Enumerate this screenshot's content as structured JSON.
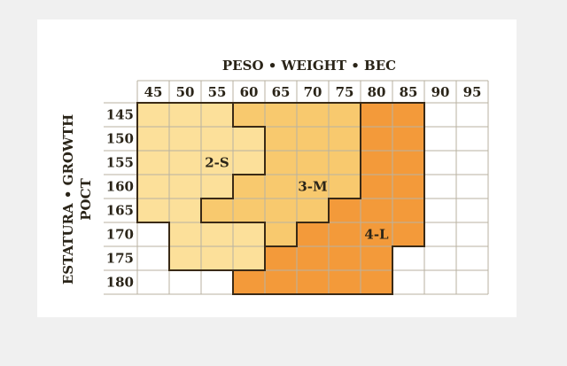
{
  "chart_data": {
    "type": "table",
    "title": "PESO • WEIGHT • BEC",
    "xlabel": "PESO • WEIGHT • BEC",
    "ylabel_line1": "ESTATURA • GROWTH",
    "ylabel_line2": "POCT",
    "x_ticks": [
      "45",
      "50",
      "55",
      "60",
      "65",
      "70",
      "75",
      "80",
      "85",
      "90",
      "95"
    ],
    "y_ticks": [
      "145",
      "150",
      "155",
      "160",
      "165",
      "170",
      "175",
      "180"
    ],
    "regions": [
      {
        "label": "2-S",
        "color": "#fce09a",
        "cells": {
          "145": [
            "45",
            "50",
            "55"
          ],
          "150": [
            "45",
            "50",
            "55",
            "60"
          ],
          "155": [
            "45",
            "50",
            "55",
            "60"
          ],
          "160": [
            "45",
            "50",
            "55"
          ],
          "165": [
            "45",
            "50"
          ],
          "170": [
            "50",
            "55",
            "60"
          ],
          "175": [
            "50",
            "55",
            "60"
          ]
        }
      },
      {
        "label": "3-M",
        "color": "#f8c96e",
        "cells": {
          "145": [
            "60",
            "65",
            "70",
            "75"
          ],
          "150": [
            "65",
            "70",
            "75"
          ],
          "155": [
            "65",
            "70",
            "75"
          ],
          "160": [
            "60",
            "65",
            "70",
            "75"
          ],
          "165": [
            "55",
            "60",
            "65",
            "70"
          ],
          "170": [
            "65"
          ]
        }
      },
      {
        "label": "4-L",
        "color": "#f39a3a",
        "cells": {
          "145": [
            "80",
            "85"
          ],
          "150": [
            "80",
            "85"
          ],
          "155": [
            "80",
            "85"
          ],
          "160": [
            "80",
            "85"
          ],
          "165": [
            "75",
            "80",
            "85"
          ],
          "170": [
            "70",
            "75",
            "80",
            "85"
          ],
          "175": [
            "65",
            "70",
            "75",
            "80"
          ],
          "180": [
            "60",
            "65",
            "70",
            "75",
            "80"
          ]
        }
      }
    ]
  },
  "colors": {
    "background": "#f0f0f0",
    "card": "#ffffff",
    "grid": "#b8b2a2",
    "outline": "#3a2a16",
    "text": "#2a2418"
  }
}
